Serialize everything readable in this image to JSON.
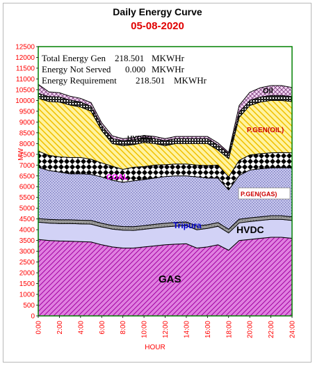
{
  "header": {
    "title": "Daily Energy Curve",
    "date": "05-08-2020"
  },
  "info": {
    "gen_label": "Total Energy Gen",
    "gen_value": "218.501",
    "gen_unit": "MKWHr",
    "ens_label": "Energy Not Served",
    "ens_value": "0.000",
    "ens_unit": "MKWHr",
    "req_label": "Energy Requirement",
    "req_value": "218.501",
    "req_unit": "MKWHr"
  },
  "chart_data": {
    "type": "area",
    "stacked": true,
    "xlabel": "HOUR",
    "ylabel": "MW",
    "ylim": [
      0,
      12500
    ],
    "yticks": [
      0,
      500,
      1000,
      1500,
      2000,
      2500,
      3000,
      3500,
      4000,
      4500,
      5000,
      5500,
      6000,
      6500,
      7000,
      7500,
      8000,
      8500,
      9000,
      9500,
      10000,
      10500,
      11000,
      11500,
      12000,
      12500
    ],
    "xticks": [
      "0:00",
      "2:00",
      "4:00",
      "6:00",
      "8:00",
      "10:00",
      "12:00",
      "14:00",
      "16:00",
      "18:00",
      "20:00",
      "22:00",
      "24:00"
    ],
    "x": [
      0,
      1,
      2,
      3,
      4,
      5,
      6,
      7,
      8,
      9,
      10,
      11,
      12,
      13,
      14,
      15,
      16,
      17,
      18,
      19,
      20,
      21,
      22,
      23,
      24
    ],
    "series": [
      {
        "name": "GAS",
        "color": "#cc33cc",
        "values": [
          3550,
          3500,
          3480,
          3470,
          3450,
          3430,
          3300,
          3200,
          3150,
          3150,
          3200,
          3250,
          3300,
          3330,
          3350,
          3150,
          3200,
          3300,
          3050,
          3500,
          3550,
          3600,
          3650,
          3650,
          3600
        ]
      },
      {
        "name": "HVDC",
        "color": "#c8c8f4",
        "values": [
          800,
          810,
          810,
          820,
          820,
          830,
          830,
          830,
          830,
          820,
          820,
          830,
          830,
          840,
          840,
          850,
          860,
          860,
          800,
          820,
          830,
          830,
          830,
          830,
          830
        ]
      },
      {
        "name": "Tripura",
        "color": "#808080",
        "values": [
          170,
          170,
          170,
          170,
          170,
          170,
          170,
          170,
          170,
          170,
          170,
          170,
          170,
          170,
          170,
          170,
          170,
          170,
          170,
          170,
          170,
          170,
          170,
          170,
          170
        ]
      },
      {
        "name": "P.GEN(GAS)",
        "color": "#b0b0e8",
        "values": [
          2380,
          2270,
          2220,
          2140,
          2160,
          2140,
          2150,
          2100,
          2050,
          2130,
          2140,
          2150,
          2170,
          2160,
          2140,
          2280,
          2170,
          2070,
          1830,
          2030,
          2220,
          2230,
          2220,
          2230,
          2270
        ]
      },
      {
        "name": "COAL",
        "color": "#000000",
        "values": [
          750,
          700,
          700,
          750,
          750,
          700,
          650,
          650,
          600,
          630,
          600,
          600,
          550,
          550,
          550,
          550,
          580,
          600,
          600,
          700,
          700,
          700,
          700,
          700,
          700
        ]
      },
      {
        "name": "P.GEN(OIL)",
        "color": "#ffd700",
        "values": [
          2450,
          2500,
          2550,
          2440,
          2350,
          2230,
          1500,
          1050,
          1100,
          1050,
          1120,
          1000,
          880,
          950,
          950,
          1000,
          1020,
          700,
          850,
          2000,
          2300,
          2400,
          2430,
          2420,
          2380
        ]
      },
      {
        "name": "HYDRO",
        "color": "#000000",
        "values": [
          230,
          230,
          230,
          230,
          230,
          230,
          230,
          230,
          230,
          230,
          230,
          230,
          230,
          230,
          230,
          230,
          230,
          230,
          230,
          230,
          230,
          230,
          230,
          230,
          230
        ]
      },
      {
        "name": "Oil",
        "color": "#e0b0e0",
        "values": [
          420,
          220,
          200,
          180,
          170,
          170,
          130,
          130,
          100,
          100,
          100,
          100,
          100,
          100,
          100,
          100,
          100,
          100,
          60,
          320,
          380,
          430,
          460,
          460,
          420
        ]
      }
    ],
    "colors": {
      "plot_border": "#008000",
      "tick_text": "#ff0000",
      "gas_label": "#000000",
      "hvdc_label": "#000000",
      "tripura_label": "#0000cc",
      "oil_label": "#000000",
      "pgen_label": "#cc0000",
      "coal_label": "#ff00ff"
    }
  }
}
